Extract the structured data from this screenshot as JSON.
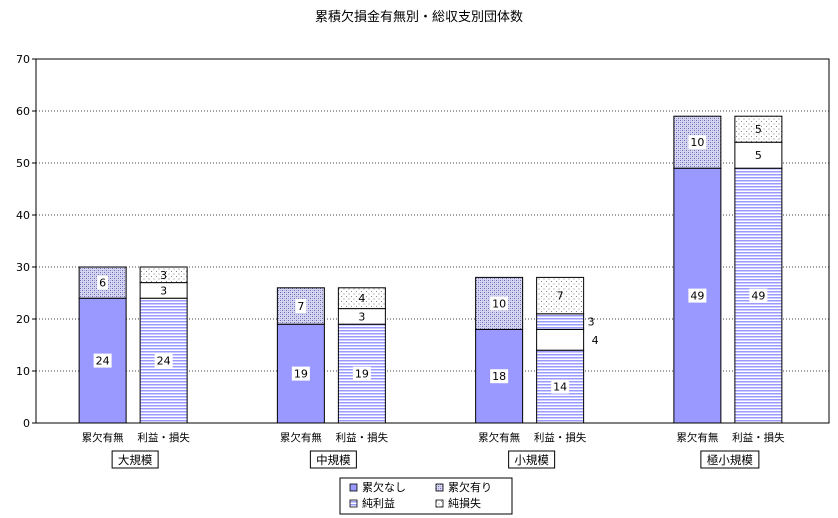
{
  "chart_data": {
    "type": "bar",
    "stacked": true,
    "title": "累積欠損金有無別・総収支別団体数",
    "xlabel": "",
    "ylabel": "",
    "ylim": [
      0,
      70
    ],
    "yticks": [
      "0",
      "10",
      "20",
      "30",
      "40",
      "50",
      "60",
      "70"
    ],
    "grid": true,
    "legend_position": "bottom",
    "groups": [
      {
        "label": "大規模",
        "deficit_bar_label": "累欠有無",
        "balance_bar_label": "利益・損失",
        "no_deficit": 24,
        "has_deficit": 6,
        "net_profit": 24,
        "net_loss_empty": 3,
        "net_loss": 3
      },
      {
        "label": "中規模",
        "deficit_bar_label": "累欠有無",
        "balance_bar_label": "利益・損失",
        "no_deficit": 19,
        "has_deficit": 7,
        "net_profit": 19,
        "net_loss_empty": 3,
        "net_loss": 4
      },
      {
        "label": "小規模",
        "deficit_bar_label": "累欠有無",
        "balance_bar_label": "利益・損失",
        "no_deficit": 18,
        "has_deficit": 10,
        "net_profit": 14,
        "net_loss_empty": 4,
        "mid_value": 3,
        "net_loss": 7
      },
      {
        "label": "極小規模",
        "deficit_bar_label": "累欠有無",
        "balance_bar_label": "利益・損失",
        "no_deficit": 49,
        "has_deficit": 10,
        "net_profit": 49,
        "net_loss_empty": 5,
        "net_loss": 5
      }
    ],
    "legend": [
      {
        "name": "累欠なし",
        "pattern": "solid-blue"
      },
      {
        "name": "累欠有り",
        "pattern": "crosshatch"
      },
      {
        "name": "純利益",
        "pattern": "horizontal-lines"
      },
      {
        "name": "純損失",
        "pattern": "dots"
      }
    ],
    "colors": {
      "blue": "#9999ff",
      "hatch": "#8c8cd9",
      "lines": "#8c8cff"
    }
  }
}
